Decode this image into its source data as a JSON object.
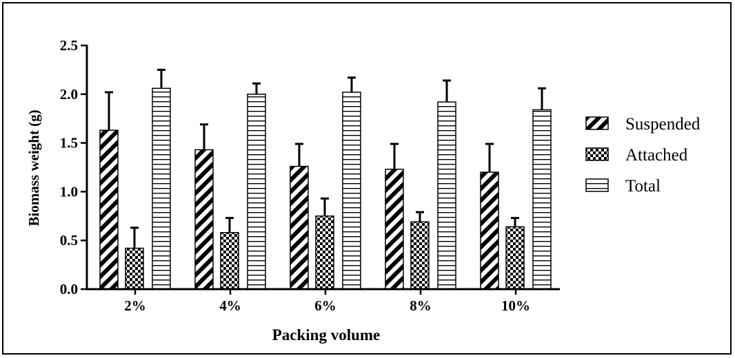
{
  "chart_data": {
    "type": "bar",
    "xlabel": "Packing volume",
    "ylabel": "Biomass weight (g)",
    "ylim": [
      0,
      2.5
    ],
    "yticks": [
      "0.0",
      "0.5",
      "1.0",
      "1.5",
      "2.0",
      "2.5"
    ],
    "categories": [
      "2%",
      "4%",
      "6%",
      "8%",
      "10%"
    ],
    "legend_position": "right",
    "series": [
      {
        "name": "Suspended",
        "pattern": "diagonal-hatch",
        "values": [
          1.63,
          1.43,
          1.26,
          1.23,
          1.2
        ],
        "errors": [
          0.39,
          0.26,
          0.23,
          0.26,
          0.29
        ]
      },
      {
        "name": "Attached",
        "pattern": "checkerboard",
        "values": [
          0.42,
          0.58,
          0.75,
          0.69,
          0.64
        ],
        "errors": [
          0.21,
          0.15,
          0.18,
          0.1,
          0.09
        ]
      },
      {
        "name": "Total",
        "pattern": "horizontal-lines",
        "values": [
          2.06,
          2.0,
          2.02,
          1.92,
          1.84
        ],
        "errors": [
          0.19,
          0.11,
          0.15,
          0.22,
          0.22
        ]
      }
    ]
  }
}
